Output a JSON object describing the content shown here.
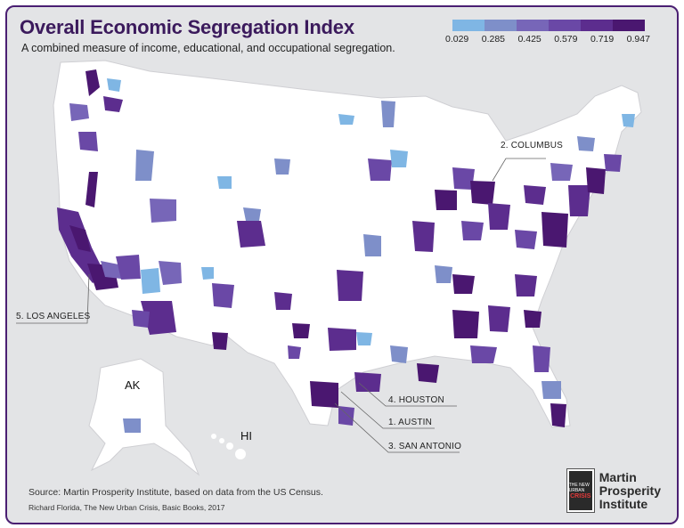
{
  "title": "Overall Economic Segregation Index",
  "subtitle": "A combined measure of income, educational, and occupational segregation.",
  "legend": {
    "colors": [
      "#7fb6e4",
      "#7e8fc9",
      "#7766b8",
      "#6a48a6",
      "#5c2d8e",
      "#4a1770"
    ],
    "ticks": [
      "0.029",
      "0.285",
      "0.425",
      "0.579",
      "0.719",
      "0.947"
    ]
  },
  "labels": {
    "ak": "AK",
    "hi": "HI"
  },
  "callouts": {
    "columbus": "2. COLUMBUS",
    "los_angeles": "5. LOS ANGELES",
    "houston": "4. HOUSTON",
    "austin": "1. AUSTIN",
    "san_antonio": "3. SAN ANTONIO"
  },
  "source": "Source: Martin Prosperity Institute, based on data from the US Census.",
  "book": "Richard Florida, The New Urban Crisis, Basic Books, 2017",
  "logo": {
    "line1": "Martin",
    "line2": "Prosperity",
    "line3": "Institute",
    "badge_top": "THE NEW URBAN",
    "badge_mid": "CRISIS"
  }
}
